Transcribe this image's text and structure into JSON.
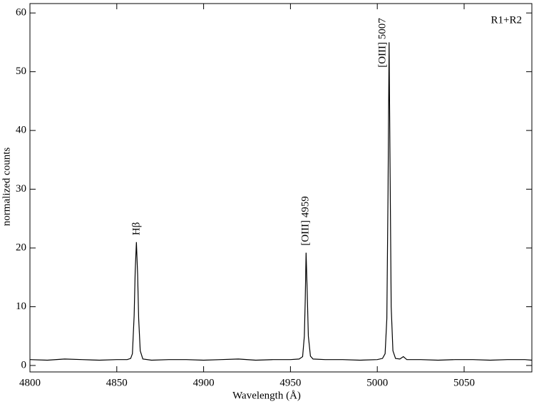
{
  "chart_data": {
    "type": "line",
    "xlabel": "Wavelength  (Å)",
    "ylabel": "normalized counts",
    "annotations": [
      "Hβ",
      "[OIII] 4959",
      "[OIII] 5007",
      "R1+R2"
    ],
    "x": [
      4800,
      4810,
      4820,
      4830,
      4840,
      4850,
      4856,
      4858,
      4859,
      4860,
      4860.6,
      4861.3,
      4862,
      4862.6,
      4863.5,
      4865,
      4870,
      4880,
      4890,
      4900,
      4910,
      4920,
      4930,
      4940,
      4950,
      4955,
      4957,
      4958,
      4958.5,
      4959,
      4959.6,
      4960.3,
      4961.5,
      4963,
      4970,
      4980,
      4990,
      5000,
      5003,
      5004.5,
      5005.5,
      5006.2,
      5006.8,
      5007.4,
      5008,
      5009,
      5010.5,
      5013,
      5015,
      5017,
      5025,
      5035,
      5045,
      5055,
      5065,
      5075,
      5085,
      5089
    ],
    "series": [
      {
        "color": "#000000",
        "values": [
          1.0,
          0.9,
          1.1,
          1.0,
          0.9,
          1.0,
          1.0,
          1.2,
          2.0,
          8.5,
          16.0,
          21.0,
          15.5,
          8.0,
          2.5,
          1.1,
          0.9,
          1.0,
          1.0,
          0.9,
          1.0,
          1.1,
          0.9,
          1.0,
          1.0,
          1.1,
          1.5,
          5.0,
          11.0,
          19.2,
          13.0,
          5.0,
          1.6,
          1.1,
          1.0,
          1.0,
          0.9,
          1.0,
          1.2,
          2.0,
          8.0,
          30.0,
          55.0,
          32.0,
          10.0,
          2.5,
          1.2,
          1.1,
          1.5,
          1.0,
          1.0,
          0.9,
          1.0,
          1.0,
          0.9,
          1.0,
          1.0,
          0.9
        ]
      }
    ],
    "xlim": [
      4800,
      5089
    ],
    "ylim": [
      -1.1,
      61.6
    ],
    "xticks": [
      4800,
      4850,
      4900,
      4950,
      5000,
      5050
    ],
    "yticks": [
      0,
      10,
      20,
      30,
      40,
      50,
      60
    ]
  }
}
